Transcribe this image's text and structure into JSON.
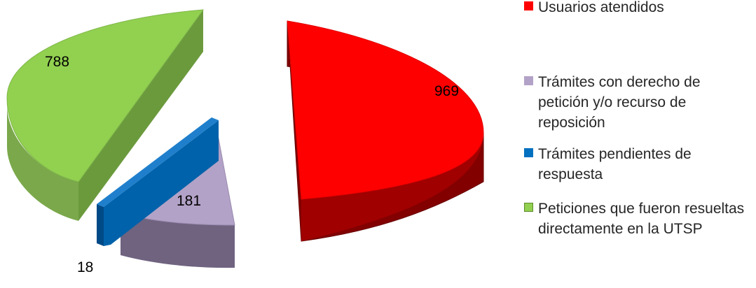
{
  "chart_data": {
    "type": "pie",
    "title": "",
    "legend_position": "right",
    "series": [
      {
        "name": "Usuarios atendidos",
        "value": 969,
        "color": "#ff0000"
      },
      {
        "name": "Trámites con derecho de petición y/o recurso de reposición",
        "value": 181,
        "color": "#b3a2c7"
      },
      {
        "name": "Trámites pendientes de respuesta",
        "value": 18,
        "color": "#0070c0"
      },
      {
        "name": "Peticiones que fueron resueltas directamente en la UTSP",
        "value": 788,
        "color": "#92d050"
      }
    ]
  }
}
